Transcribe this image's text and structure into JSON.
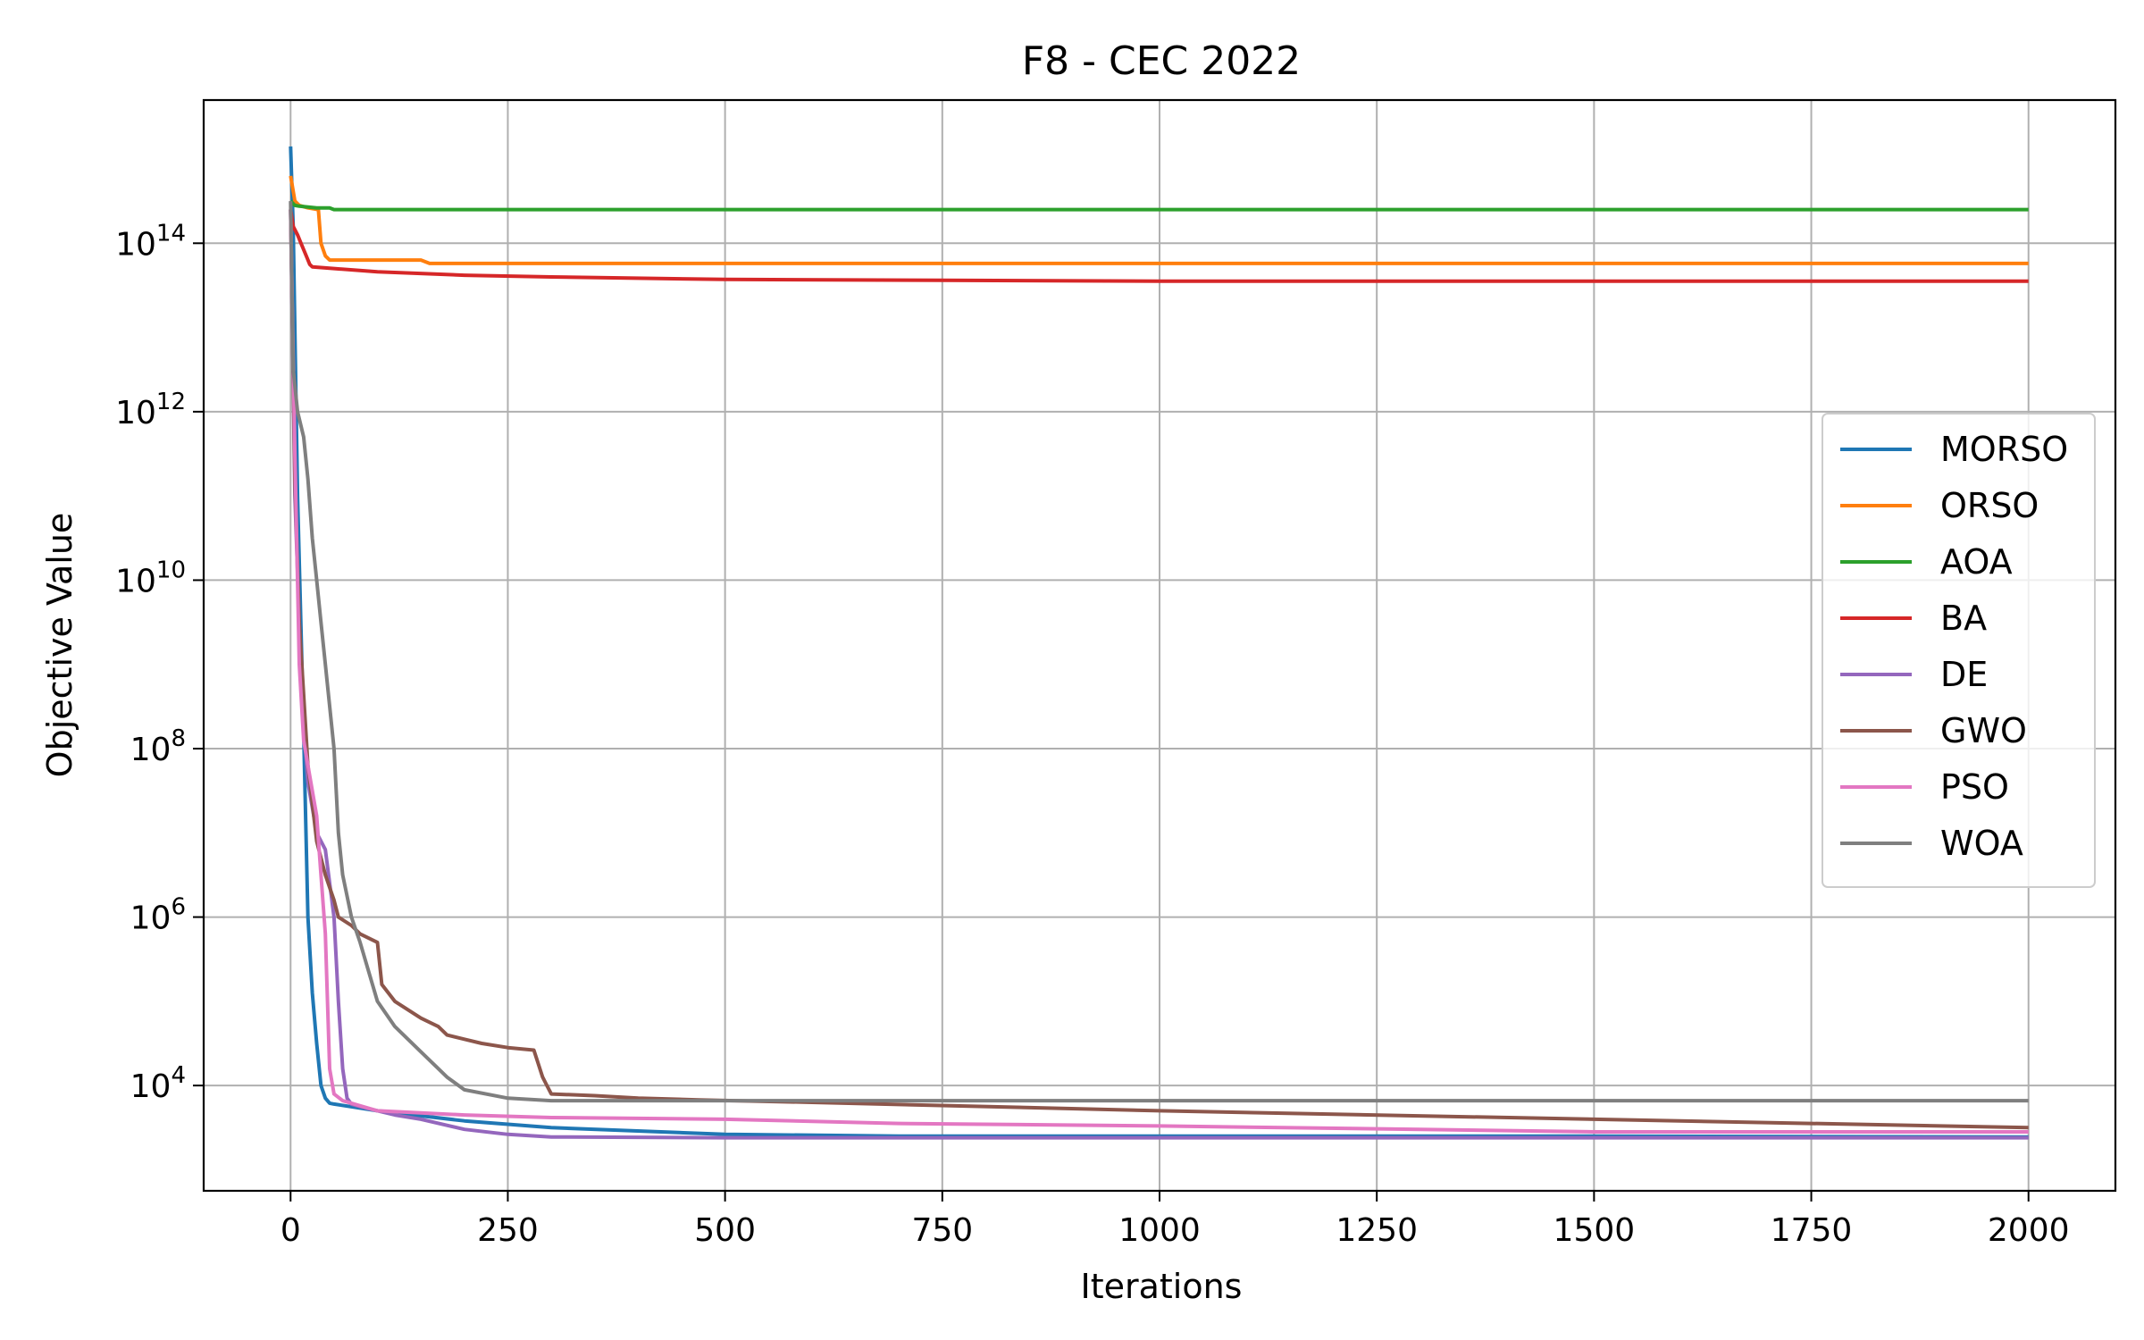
{
  "chart_data": {
    "type": "line",
    "title": "F8 - CEC 2022",
    "xlabel": "Iterations",
    "ylabel": "Objective Value",
    "xlim": [
      -100,
      2100
    ],
    "ylim_log10": [
      2.75,
      15.7
    ],
    "yscale": "log",
    "grid": true,
    "legend_position": "center-right",
    "xticks": [
      0,
      250,
      500,
      750,
      1000,
      1250,
      1500,
      1750,
      2000
    ],
    "xtick_labels": [
      "0",
      "250",
      "500",
      "750",
      "1000",
      "1250",
      "1500",
      "1750",
      "2000"
    ],
    "yticks_log10": [
      4,
      6,
      8,
      10,
      12,
      14
    ],
    "ytick_labels": [
      {
        "base": "10",
        "exp": "4"
      },
      {
        "base": "10",
        "exp": "6"
      },
      {
        "base": "10",
        "exp": "8"
      },
      {
        "base": "10",
        "exp": "10"
      },
      {
        "base": "10",
        "exp": "12"
      },
      {
        "base": "10",
        "exp": "14"
      }
    ],
    "series": [
      {
        "name": "MORSO",
        "color": "#1f77b4",
        "x": [
          0,
          3,
          8,
          15,
          20,
          25,
          30,
          35,
          40,
          45,
          50,
          100,
          200,
          300,
          500,
          700,
          1000,
          1500,
          2000
        ],
        "y_log10": [
          15.15,
          14.2,
          11.0,
          8.2,
          6.0,
          5.1,
          4.5,
          4.0,
          3.85,
          3.79,
          3.78,
          3.7,
          3.58,
          3.5,
          3.42,
          3.4,
          3.4,
          3.4,
          3.39
        ]
      },
      {
        "name": "ORSO",
        "color": "#ff7f0e",
        "x": [
          0,
          5,
          10,
          20,
          32,
          35,
          40,
          45,
          100,
          150,
          160,
          200,
          500,
          1000,
          1500,
          2000
        ],
        "y_log10": [
          14.8,
          14.5,
          14.45,
          14.42,
          14.4,
          14.0,
          13.85,
          13.8,
          13.8,
          13.8,
          13.76,
          13.76,
          13.76,
          13.76,
          13.76,
          13.76
        ]
      },
      {
        "name": "AOA",
        "color": "#2ca02c",
        "x": [
          0,
          5,
          10,
          30,
          45,
          50,
          100,
          500,
          1000,
          2000
        ],
        "y_log10": [
          14.5,
          14.45,
          14.44,
          14.42,
          14.42,
          14.4,
          14.4,
          14.4,
          14.4,
          14.4
        ]
      },
      {
        "name": "BA",
        "color": "#d62728",
        "x": [
          0,
          3,
          8,
          12,
          18,
          22,
          25,
          50,
          100,
          200,
          300,
          500,
          750,
          1000,
          1500,
          2000
        ],
        "y_log10": [
          14.4,
          14.2,
          14.1,
          14.0,
          13.85,
          13.75,
          13.72,
          13.7,
          13.66,
          13.62,
          13.6,
          13.57,
          13.56,
          13.55,
          13.55,
          13.55
        ]
      },
      {
        "name": "DE",
        "color": "#9467bd",
        "x": [
          0,
          5,
          10,
          15,
          20,
          30,
          40,
          50,
          55,
          60,
          65,
          70,
          80,
          100,
          120,
          150,
          200,
          250,
          300,
          500,
          1000,
          2000
        ],
        "y_log10": [
          14.4,
          11.0,
          9.5,
          8.3,
          7.6,
          7.0,
          6.8,
          6.0,
          5.0,
          4.2,
          3.85,
          3.78,
          3.75,
          3.7,
          3.65,
          3.6,
          3.48,
          3.42,
          3.39,
          3.38,
          3.38,
          3.38
        ]
      },
      {
        "name": "GWO",
        "color": "#8c564b",
        "x": [
          0,
          5,
          10,
          20,
          30,
          40,
          50,
          55,
          70,
          80,
          100,
          105,
          120,
          150,
          170,
          180,
          200,
          220,
          250,
          280,
          290,
          295,
          300,
          350,
          400,
          470,
          600,
          1000,
          1500,
          2000
        ],
        "y_log10": [
          14.4,
          11.2,
          9.5,
          7.8,
          6.9,
          6.5,
          6.2,
          6.0,
          5.9,
          5.8,
          5.7,
          5.2,
          5.0,
          4.8,
          4.7,
          4.6,
          4.55,
          4.5,
          4.45,
          4.42,
          4.1,
          4.0,
          3.9,
          3.88,
          3.85,
          3.83,
          3.8,
          3.7,
          3.6,
          3.5
        ]
      },
      {
        "name": "PSO",
        "color": "#e377c2",
        "x": [
          0,
          5,
          10,
          15,
          20,
          25,
          30,
          35,
          40,
          45,
          50,
          60,
          80,
          100,
          200,
          300,
          500,
          700,
          1000,
          1300,
          1500,
          2000
        ],
        "y_log10": [
          14.4,
          11.5,
          9.0,
          8.1,
          7.8,
          7.5,
          7.2,
          6.5,
          5.8,
          4.2,
          3.9,
          3.82,
          3.76,
          3.7,
          3.65,
          3.62,
          3.6,
          3.55,
          3.52,
          3.48,
          3.45,
          3.45
        ]
      },
      {
        "name": "WOA",
        "color": "#7f7f7f",
        "x": [
          0,
          3,
          8,
          15,
          20,
          25,
          30,
          35,
          40,
          50,
          55,
          60,
          70,
          80,
          100,
          120,
          150,
          180,
          200,
          250,
          300,
          500,
          1000,
          1500,
          2000
        ],
        "y_log10": [
          14.5,
          12.5,
          12.0,
          11.7,
          11.2,
          10.5,
          10.0,
          9.5,
          9.0,
          8.0,
          7.0,
          6.5,
          6.0,
          5.7,
          5.0,
          4.7,
          4.4,
          4.1,
          3.95,
          3.85,
          3.82,
          3.82,
          3.82,
          3.82,
          3.82
        ]
      }
    ]
  }
}
